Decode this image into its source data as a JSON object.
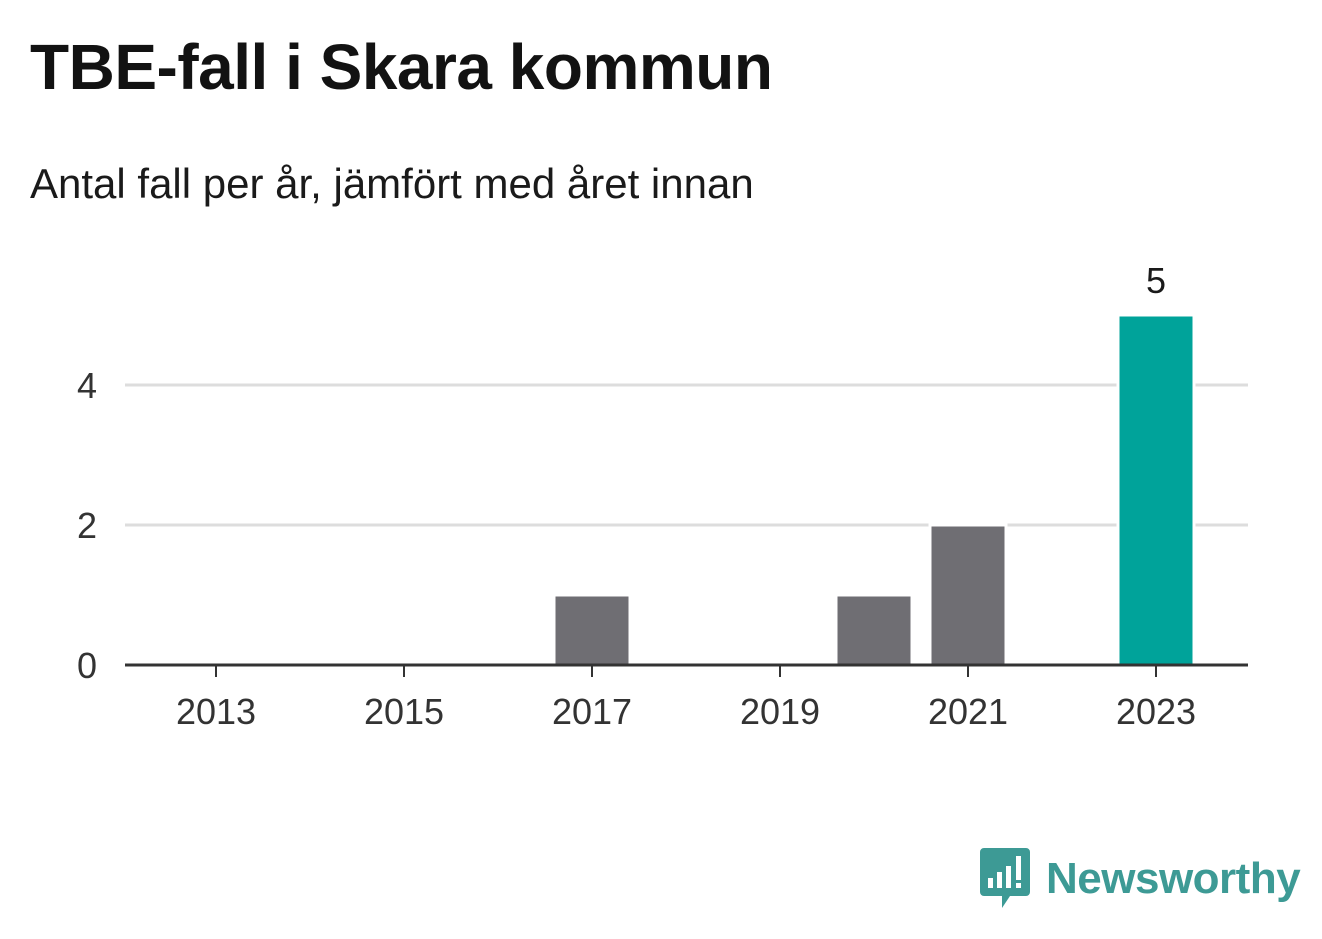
{
  "title": "TBE-fall i Skara kommun",
  "subtitle": "Antal fall per år, jämfört med året innan",
  "brand": {
    "name": "Newsworthy",
    "color": "#3d9a95",
    "icon": "bar-chart-speech-bubble-icon"
  },
  "colors": {
    "default_bar": "#6f6e73",
    "highlight_bar": "#00a39a",
    "grid": "#dddddd",
    "axis": "#333333"
  },
  "chart_data": {
    "type": "bar",
    "title": "TBE-fall i Skara kommun",
    "subtitle": "Antal fall per år, jämfört med året innan",
    "categories": [
      "2013",
      "2014",
      "2015",
      "2016",
      "2017",
      "2018",
      "2019",
      "2020",
      "2021",
      "2022",
      "2023"
    ],
    "values": [
      0,
      0,
      0,
      0,
      1,
      0,
      0,
      1,
      2,
      0,
      5
    ],
    "highlight_index": 10,
    "highlight_label": "5",
    "x_tick_labels": [
      "2013",
      "2015",
      "2017",
      "2019",
      "2021",
      "2023"
    ],
    "y_ticks": [
      "0",
      "2",
      "4"
    ],
    "ylim": [
      0,
      5
    ],
    "grid": true,
    "xlabel": "",
    "ylabel": ""
  }
}
